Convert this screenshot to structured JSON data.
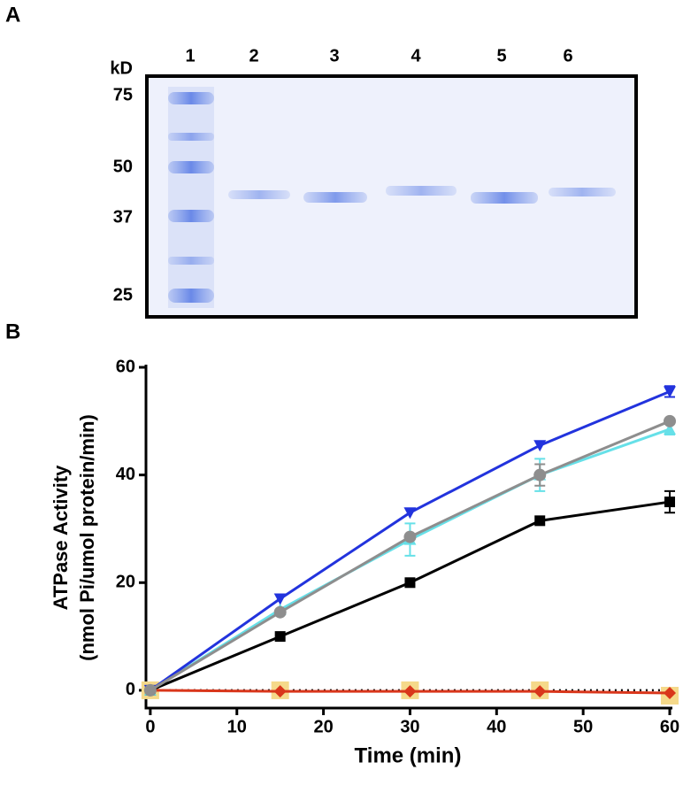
{
  "panel_labels": [
    "A",
    "B"
  ],
  "gel": {
    "unit": "kD",
    "markers": [
      75,
      50,
      37,
      25
    ],
    "lanes": [
      1,
      2,
      3,
      4,
      5,
      6
    ]
  },
  "chart_data": {
    "type": "line",
    "x_label": "Time (min)",
    "y_label": [
      "ATPase Activity",
      "(nmol Pi/umol protein/min)"
    ],
    "x": [
      0,
      15,
      30,
      45,
      60
    ],
    "xlim": [
      -0.5,
      60
    ],
    "xticks": [
      0,
      10,
      20,
      30,
      40,
      50,
      60
    ],
    "ylim": [
      -3.3,
      60
    ],
    "yticks": [
      0,
      20,
      40,
      60
    ],
    "series": [
      {
        "color": "#000000",
        "marker": "none",
        "linestyle": "dotted",
        "values": [
          0,
          0,
          0,
          0,
          0
        ]
      },
      {
        "color": "#f5d98a",
        "marker": "square-big",
        "linestyle": "none",
        "values": [
          0,
          0,
          0,
          0,
          -1
        ]
      },
      {
        "color": "#d9361b",
        "marker": "diamond",
        "linestyle": "solid",
        "values": [
          0,
          -0.2,
          -0.2,
          -0.2,
          -0.5
        ]
      },
      {
        "color": "#000000",
        "marker": "square",
        "linestyle": "solid",
        "values": [
          0,
          10,
          20,
          31.5,
          35
        ],
        "errors": [
          null,
          null,
          null,
          null,
          2
        ]
      },
      {
        "color": "#66e0e8",
        "marker": "triangle-up",
        "linestyle": "solid",
        "values": [
          0,
          15,
          28,
          40,
          48.5
        ],
        "errors": [
          null,
          null,
          3,
          3,
          1
        ]
      },
      {
        "color": "#2233dd",
        "marker": "triangle-down",
        "linestyle": "solid",
        "values": [
          0,
          17,
          33,
          45.5,
          55.5
        ],
        "errors": [
          null,
          null,
          null,
          null,
          1
        ]
      },
      {
        "color": "#8e8e8e",
        "marker": "circle",
        "linestyle": "solid",
        "values": [
          0,
          14.5,
          28.5,
          40,
          50
        ],
        "errors": [
          null,
          null,
          null,
          2,
          null
        ]
      }
    ]
  }
}
